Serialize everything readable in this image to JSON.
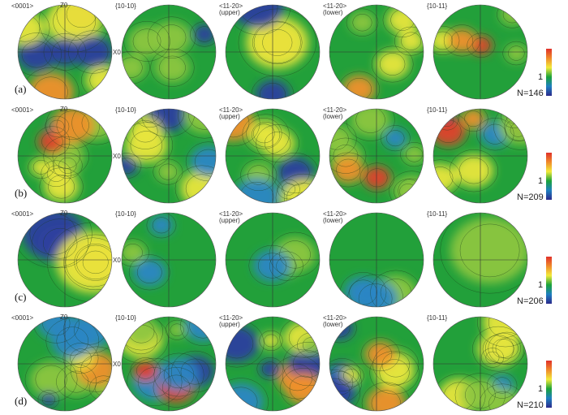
{
  "rows": [
    {
      "label": "(a)",
      "n": "N=146"
    },
    {
      "label": "(b)",
      "n": "N=209"
    },
    {
      "label": "(c)",
      "n": "N=206"
    },
    {
      "label": "(d)",
      "n": "N=210"
    }
  ],
  "columns": [
    {
      "line1": "<0001>",
      "line2": ""
    },
    {
      "line1": "{10-10}",
      "line2": ""
    },
    {
      "line1": "<11-20>",
      "line2": "(upper)"
    },
    {
      "line1": "<11-20>",
      "line2": "(lower)"
    },
    {
      "line1": "{10-11}",
      "line2": ""
    }
  ],
  "axis_labels": {
    "z": "Z0",
    "x": "X0"
  },
  "colorbar": {
    "mid_label": "1",
    "colors": [
      "#2b2a8c",
      "#1e7fc0",
      "#1aa33a",
      "#f2ea3a",
      "#f08a2a",
      "#e0302a"
    ]
  }
}
